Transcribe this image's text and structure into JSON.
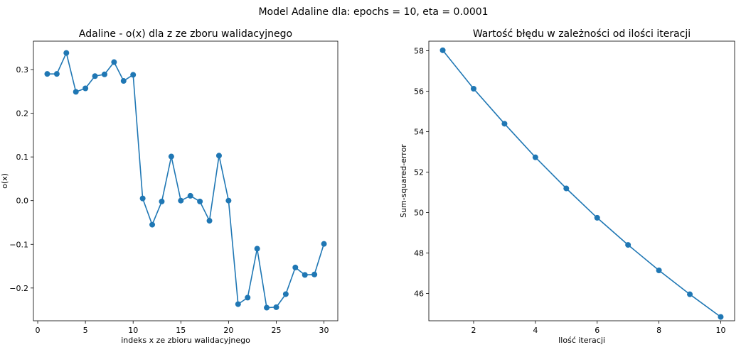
{
  "figure_title": "Model Adaline dla: epochs = 10, eta = 0.0001",
  "line_color": "#1f77b4",
  "chart_data": [
    {
      "type": "line",
      "title": "Adaline - o(x) dla z ze zboru walidacyjnego",
      "xlabel": "indeks x ze zbioru walidacyjnego",
      "ylabel": "o(x)",
      "xlim": [
        -0.45,
        31.45
      ],
      "ylim": [
        -0.275,
        0.365
      ],
      "xticks": [
        0,
        5,
        10,
        15,
        20,
        25,
        30
      ],
      "xtick_labels": [
        "0",
        "5",
        "10",
        "15",
        "20",
        "25",
        "30"
      ],
      "yticks": [
        -0.2,
        -0.1,
        0.0,
        0.1,
        0.2,
        0.3
      ],
      "ytick_labels": [
        "−0.2",
        "−0.1",
        "0.0",
        "0.1",
        "0.2",
        "0.3"
      ],
      "x": [
        1,
        2,
        3,
        4,
        5,
        6,
        7,
        8,
        9,
        10,
        11,
        12,
        13,
        14,
        15,
        16,
        17,
        18,
        19,
        20,
        21,
        22,
        23,
        24,
        25,
        26,
        27,
        28,
        29,
        30
      ],
      "y": [
        0.29,
        0.29,
        0.338,
        0.249,
        0.257,
        0.285,
        0.289,
        0.317,
        0.274,
        0.288,
        0.005,
        -0.055,
        -0.002,
        0.101,
        0.0,
        0.011,
        -0.002,
        -0.046,
        0.103,
        0.0,
        -0.237,
        -0.222,
        -0.11,
        -0.245,
        -0.244,
        -0.214,
        -0.153,
        -0.17,
        -0.169,
        -0.099
      ],
      "grid": false,
      "marker": "circle"
    },
    {
      "type": "line",
      "title": "Wartość błędu w zależności od ilości iteracji",
      "xlabel": "Ilość iteracji",
      "ylabel": "Sum-squared-error",
      "xlim": [
        0.55,
        10.45
      ],
      "ylim": [
        44.65,
        58.47
      ],
      "xticks": [
        2,
        4,
        6,
        8,
        10
      ],
      "xtick_labels": [
        "2",
        "4",
        "6",
        "8",
        "10"
      ],
      "yticks": [
        46,
        48,
        50,
        52,
        54,
        56,
        58
      ],
      "ytick_labels": [
        "46",
        "48",
        "50",
        "52",
        "54",
        "56",
        "58"
      ],
      "x": [
        1,
        2,
        3,
        4,
        5,
        6,
        7,
        8,
        9,
        10
      ],
      "y": [
        58.02,
        56.12,
        54.39,
        52.73,
        51.19,
        49.74,
        48.4,
        47.14,
        45.96,
        44.84
      ],
      "grid": false,
      "marker": "circle"
    }
  ]
}
